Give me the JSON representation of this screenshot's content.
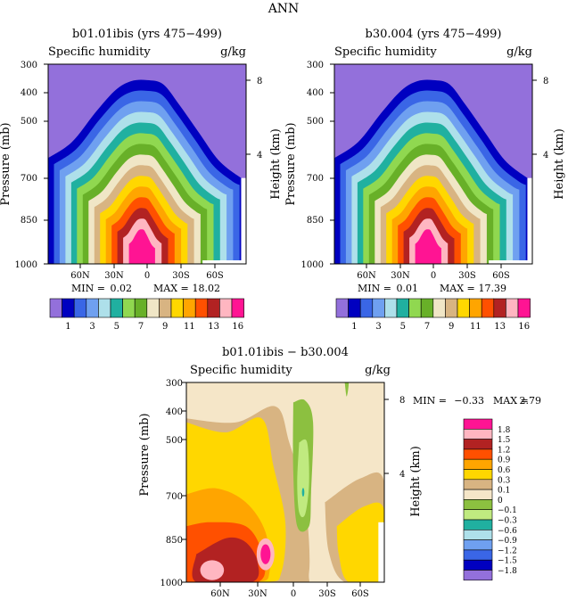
{
  "figure_title": "ANN",
  "chart_data": [
    {
      "type": "contour",
      "title": "b01.01ibis (yrs 475−499)",
      "field_label": "Specific humidity",
      "units": "g/kg",
      "ylabel": "Pressure (mb)",
      "ylabel_right": "Height (km)",
      "y_ticks": [
        "300",
        "400",
        "500",
        "700",
        "850",
        "1000"
      ],
      "y_ticks_right": [
        "8",
        "4"
      ],
      "x_ticks": [
        "60N",
        "30N",
        "0",
        "30S",
        "60S"
      ],
      "min_label": "MIN =",
      "min": "0.02",
      "max_label": "MAX =",
      "max": "18.02",
      "levels": [
        "1",
        "3",
        "5",
        "7",
        "9",
        "11",
        "13",
        "16"
      ]
    },
    {
      "type": "contour",
      "title": "b30.004 (yrs 475−499)",
      "field_label": "Specific humidity",
      "units": "g/kg",
      "ylabel": "Pressure (mb)",
      "ylabel_right": "Height (km)",
      "y_ticks": [
        "300",
        "400",
        "500",
        "700",
        "850",
        "1000"
      ],
      "y_ticks_right": [
        "8",
        "4"
      ],
      "x_ticks": [
        "60N",
        "30N",
        "0",
        "30S",
        "60S"
      ],
      "min_label": "MIN =",
      "min": "0.01",
      "max_label": "MAX =",
      "max": "17.39",
      "levels": [
        "1",
        "3",
        "5",
        "7",
        "9",
        "11",
        "13",
        "16"
      ]
    },
    {
      "type": "contour",
      "title": "b01.01ibis − b30.004",
      "field_label": "Specific humidity",
      "units": "g/kg",
      "ylabel": "Pressure (mb)",
      "ylabel_right": "Height (km)",
      "y_ticks": [
        "300",
        "400",
        "500",
        "700",
        "850",
        "1000"
      ],
      "y_ticks_right": [
        "8",
        "4"
      ],
      "x_ticks": [
        "60N",
        "30N",
        "0",
        "30S",
        "60S"
      ],
      "min_label": "MIN =",
      "min": "−0.33",
      "max_label": "MAX =",
      "max": "2.79",
      "levels": [
        "1.8",
        "1.5",
        "1.2",
        "0.9",
        "0.6",
        "0.3",
        "0.1",
        "0",
        "−0.1",
        "−0.3",
        "−0.6",
        "−0.9",
        "−1.2",
        "−1.5",
        "−1.8"
      ]
    }
  ],
  "colors": {
    "abs": [
      "#9370db",
      "#0000c0",
      "#3a66e6",
      "#6fa0f0",
      "#aee0ea",
      "#20b0a0",
      "#90d850",
      "#68b028",
      "#f0e6c6",
      "#d8b482",
      "#ffd700",
      "#ffa500",
      "#ff5000",
      "#b22222",
      "#ffb6c1",
      "#ff1493"
    ],
    "diff": [
      "#9370db",
      "#0000c0",
      "#3a66e6",
      "#6fa0f0",
      "#aee0ea",
      "#20b0a0",
      "#c0ea80",
      "#8cc040",
      "#f5e6c8",
      "#d8b482",
      "#ffd700",
      "#ffa500",
      "#ff5000",
      "#b22222",
      "#ffb6c1",
      "#ff1493"
    ]
  }
}
